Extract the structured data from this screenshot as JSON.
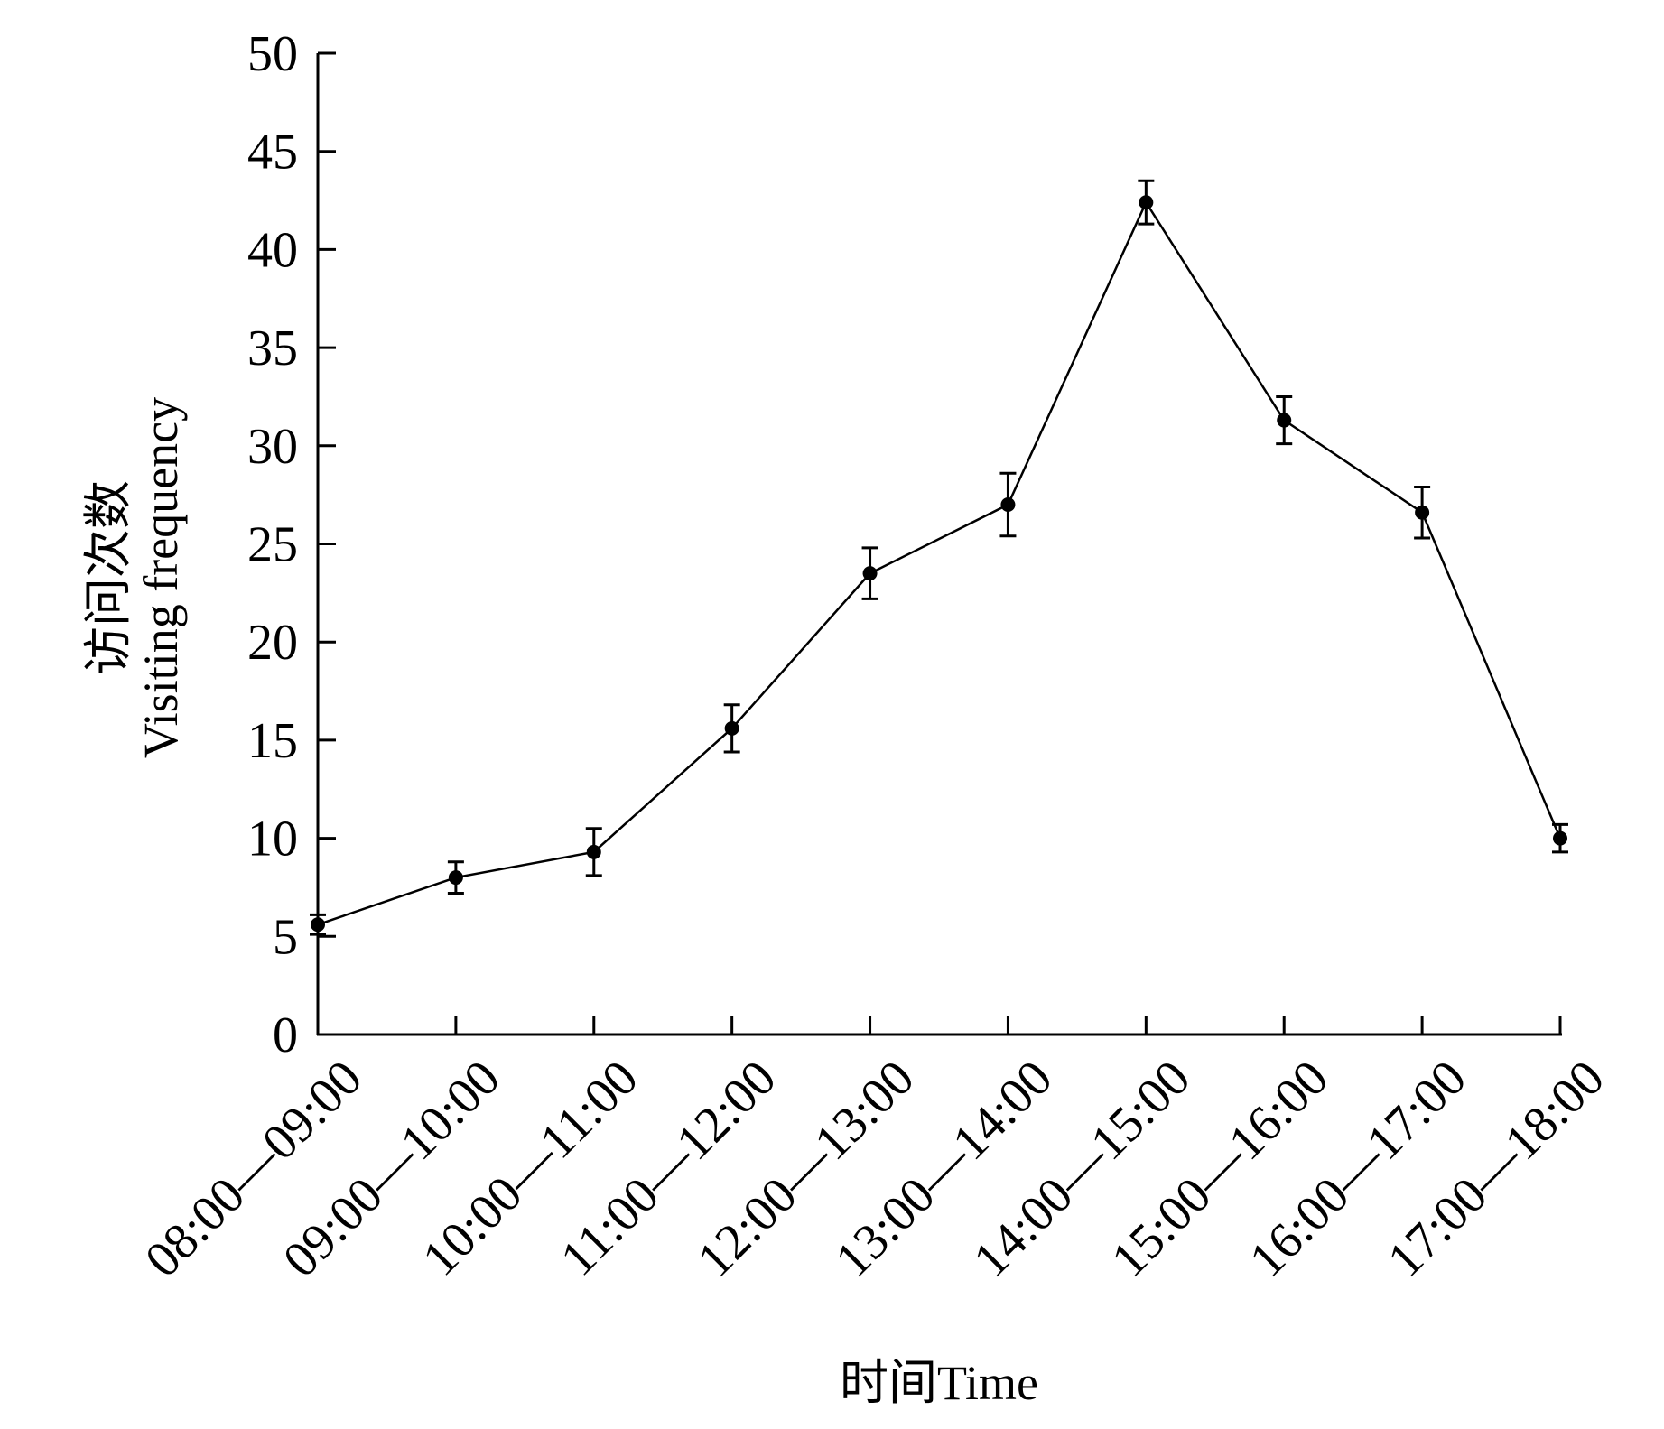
{
  "chart_data": {
    "type": "line",
    "title": "",
    "xlabel": "时间Time",
    "ylabel_line1": "访问次数",
    "ylabel_line2": "Visiting frequency",
    "categories": [
      "08:00—09:00",
      "09:00—10:00",
      "10:00—11:00",
      "11:00—12:00",
      "12:00—13:00",
      "13:00—14:00",
      "14:00—15:00",
      "15:00—16:00",
      "16:00—17:00",
      "17:00—18:00"
    ],
    "series": [
      {
        "name": "Visiting frequency",
        "values": [
          5.6,
          8.0,
          9.3,
          15.6,
          23.5,
          27.0,
          42.4,
          31.3,
          26.6,
          10.0
        ],
        "errors": [
          0.5,
          0.8,
          1.2,
          1.2,
          1.3,
          1.6,
          1.1,
          1.2,
          1.3,
          0.7
        ]
      }
    ],
    "ylim": [
      0,
      50
    ],
    "yticks": [
      "0",
      "5",
      "10",
      "15",
      "20",
      "25",
      "30",
      "35",
      "40",
      "45",
      "50"
    ],
    "grid": false,
    "legend": "none",
    "color": "#000000"
  }
}
